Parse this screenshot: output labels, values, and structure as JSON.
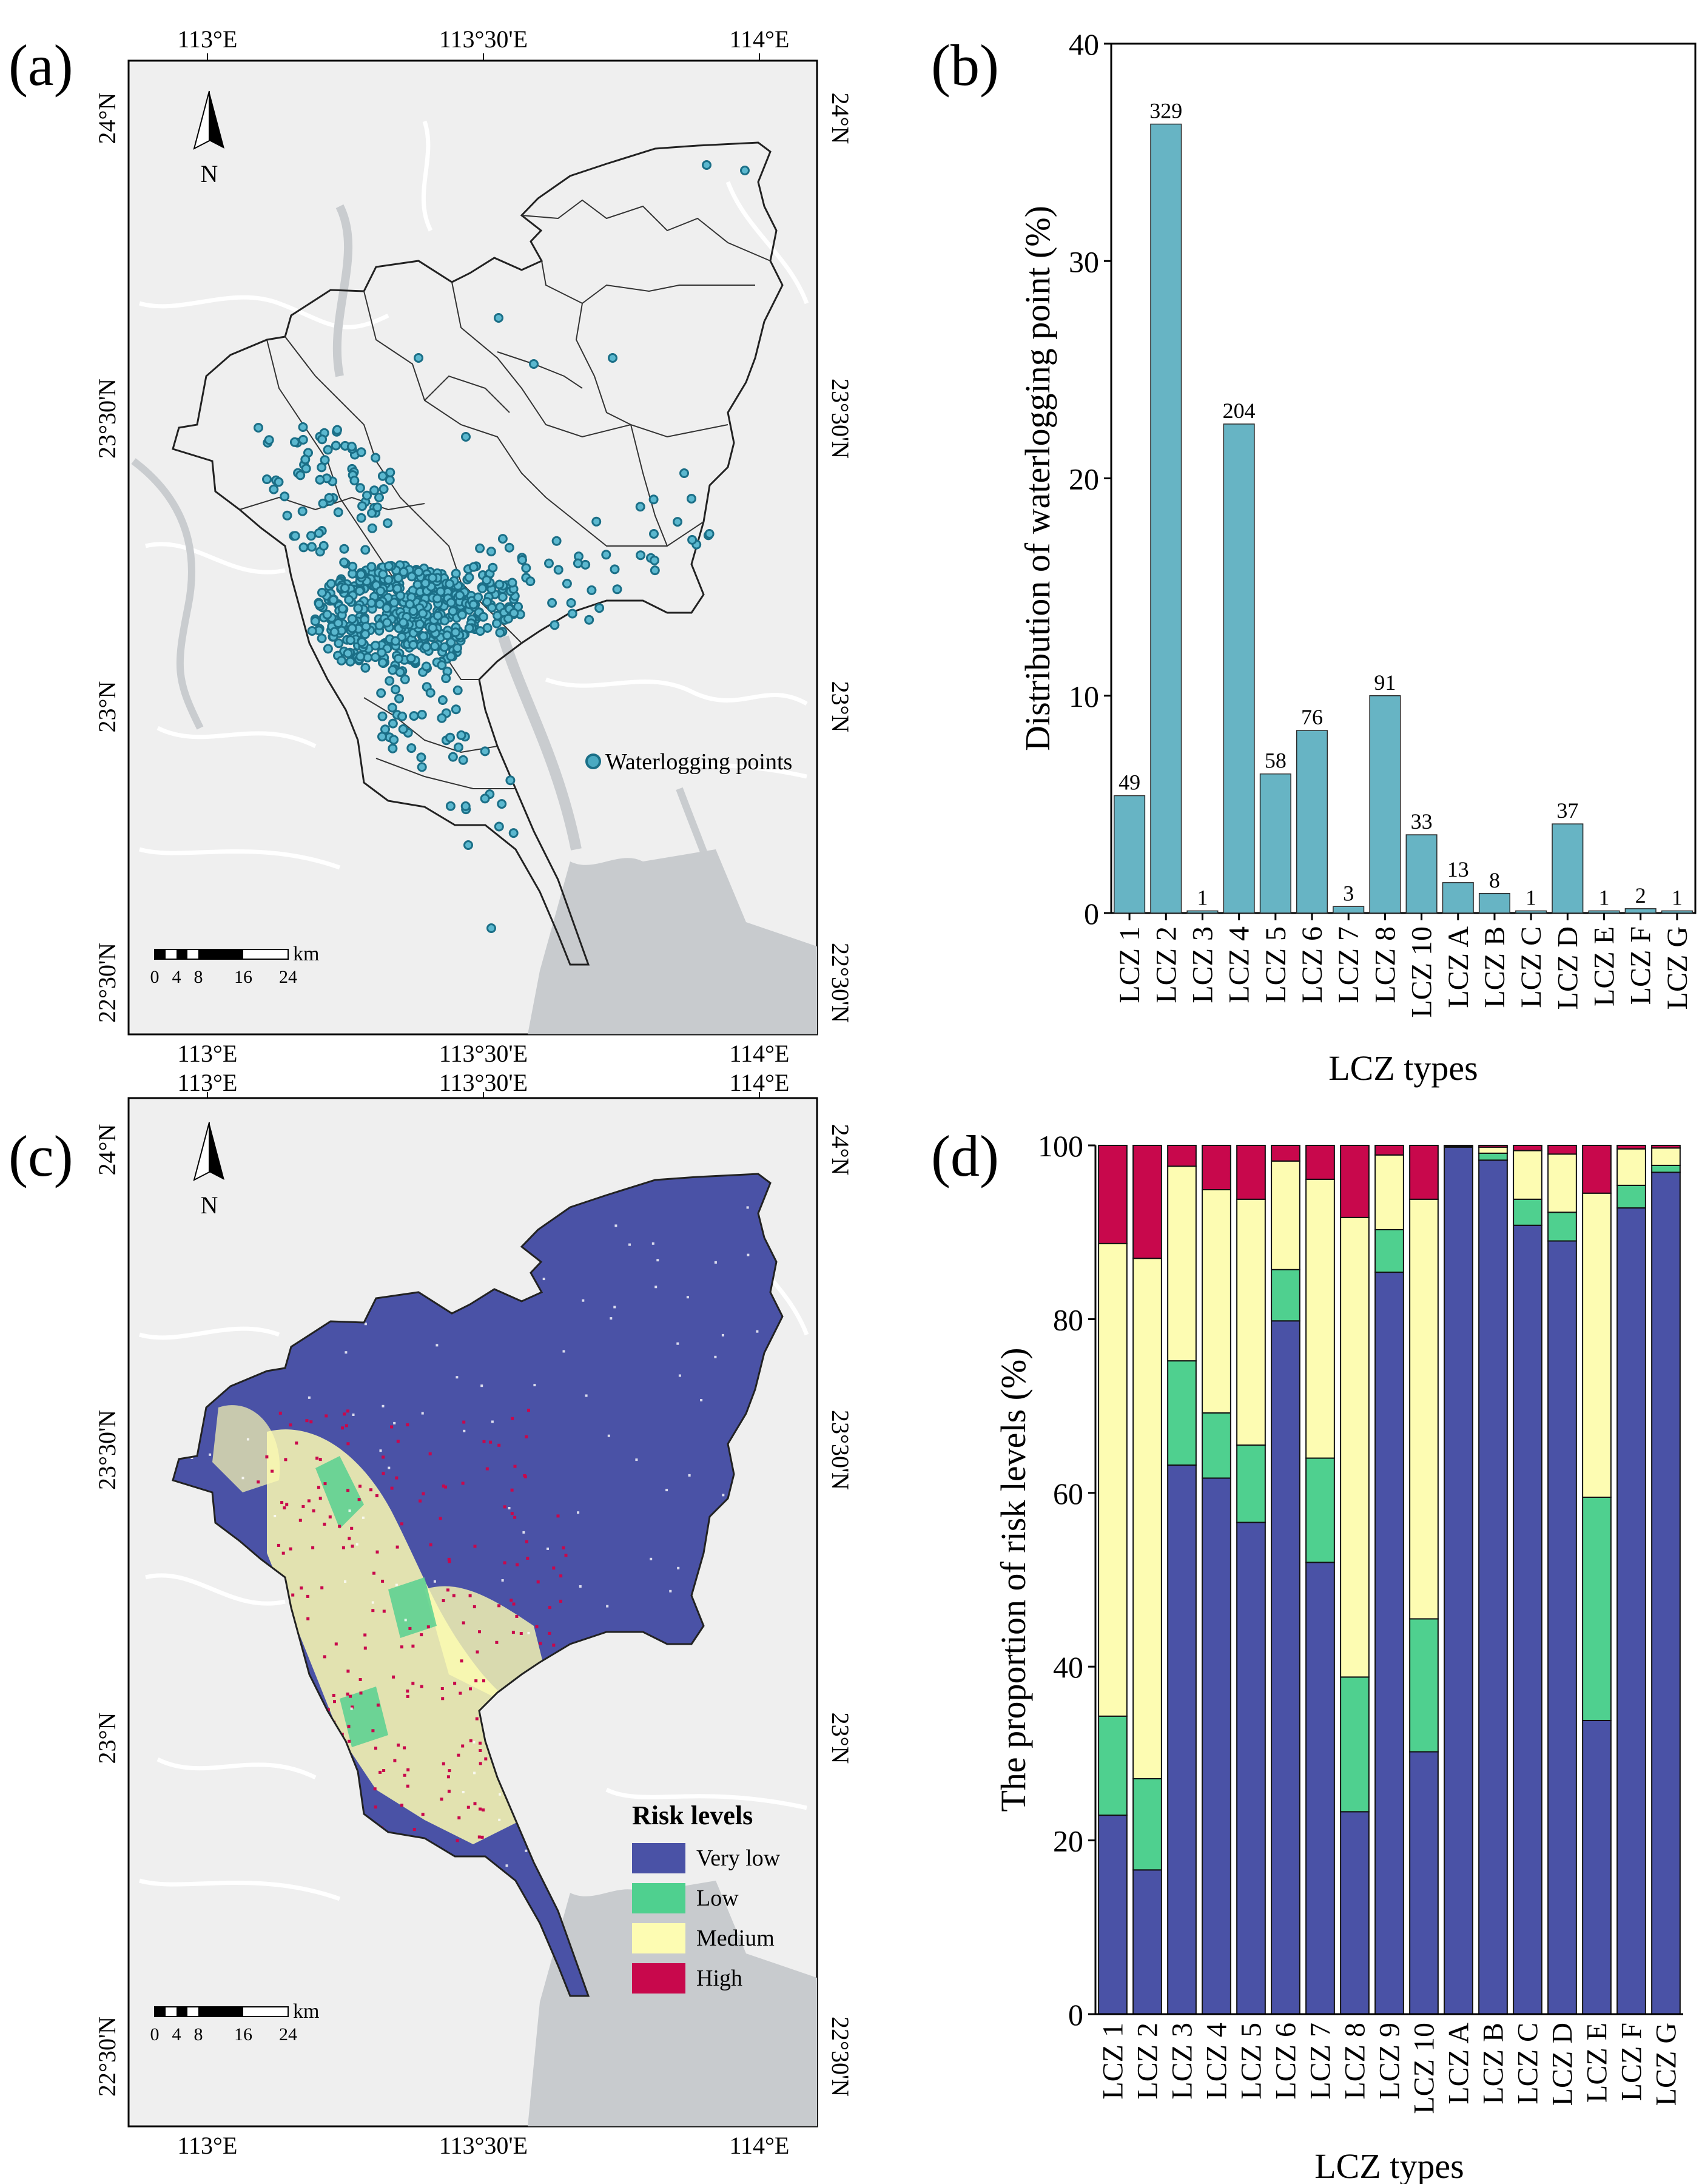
{
  "panels": {
    "a": {
      "label": "(a)",
      "lon_ticks": [
        "113°E",
        "113°30'E",
        "114°E"
      ],
      "lat_ticks": [
        "24°N",
        "23°30'N",
        "23°N",
        "22°30'N"
      ],
      "north": "N",
      "scale_unit": "km",
      "scale_ticks": [
        "0",
        "4",
        "8",
        "16",
        "24"
      ],
      "legend": {
        "label": "Waterlogging points",
        "color": "#4aa9c1"
      }
    },
    "b": {
      "label": "(b)"
    },
    "c": {
      "label": "(c)",
      "lon_ticks": [
        "113°E",
        "113°30'E",
        "114°E"
      ],
      "lat_ticks": [
        "24°N",
        "23°30'N",
        "23°N",
        "22°30'N"
      ],
      "north": "N",
      "scale_unit": "km",
      "scale_ticks": [
        "0",
        "4",
        "8",
        "16",
        "24"
      ],
      "legend": {
        "title": "Risk levels",
        "items": [
          {
            "label": "Very low",
            "color": "#4a52a6"
          },
          {
            "label": "Low",
            "color": "#4fd08f"
          },
          {
            "label": "Medium",
            "color": "#fdfcb2"
          },
          {
            "label": "High",
            "color": "#c8084c"
          }
        ]
      }
    },
    "d": {
      "label": "(d)"
    }
  },
  "chart_data": [
    {
      "panel": "b",
      "type": "bar",
      "categories": [
        "LCZ 1",
        "LCZ 2",
        "LCZ 3",
        "LCZ 4",
        "LCZ 5",
        "LCZ 6",
        "LCZ 7",
        "LCZ 8",
        "LCZ 10",
        "LCZ A",
        "LCZ B",
        "LCZ C",
        "LCZ D",
        "LCZ E",
        "LCZ F",
        "LCZ G"
      ],
      "values": [
        5.4,
        36.3,
        0.1,
        22.5,
        6.4,
        8.4,
        0.3,
        10.0,
        3.6,
        1.4,
        0.9,
        0.1,
        4.1,
        0.1,
        0.2,
        0.1
      ],
      "data_labels": [
        "49",
        "329",
        "1",
        "204",
        "58",
        "76",
        "3",
        "91",
        "33",
        "13",
        "8",
        "1",
        "37",
        "1",
        "2",
        "1"
      ],
      "yticks": [
        "0",
        "10",
        "20",
        "30",
        "40"
      ],
      "ylim": [
        0,
        40
      ],
      "xlabel": "LCZ types",
      "ylabel": "Distribution of waterlogging point (%)",
      "bar_color": "#67b4c4"
    },
    {
      "panel": "d",
      "type": "bar",
      "stacked": true,
      "categories": [
        "LCZ 1",
        "LCZ 2",
        "LCZ 3",
        "LCZ 4",
        "LCZ 5",
        "LCZ 6",
        "LCZ 7",
        "LCZ 8",
        "LCZ 9",
        "LCZ 10",
        "LCZ A",
        "LCZ B",
        "LCZ C",
        "LCZ D",
        "LCZ E",
        "LCZ F",
        "LCZ G"
      ],
      "series": [
        {
          "name": "Very low",
          "color": "#4a52a6",
          "values": [
            22.9,
            16.6,
            63.2,
            61.7,
            56.6,
            79.8,
            52.0,
            23.3,
            85.4,
            30.2,
            99.8,
            98.3,
            90.8,
            89.0,
            33.8,
            92.8,
            96.9
          ]
        },
        {
          "name": "Low",
          "color": "#4fd08f",
          "values": [
            11.4,
            10.5,
            12.0,
            7.5,
            8.9,
            5.9,
            12.0,
            15.5,
            4.9,
            15.3,
            0.1,
            0.8,
            3.0,
            3.3,
            25.7,
            2.6,
            0.8
          ]
        },
        {
          "name": "Medium",
          "color": "#fdfcb2",
          "values": [
            54.4,
            59.9,
            22.4,
            25.7,
            28.3,
            12.5,
            32.1,
            52.9,
            8.6,
            48.3,
            0.0,
            0.7,
            5.6,
            6.7,
            35.0,
            4.2,
            2.0
          ]
        },
        {
          "name": "High",
          "color": "#c8084c",
          "values": [
            11.3,
            13.0,
            2.4,
            5.1,
            6.2,
            1.8,
            3.9,
            8.3,
            1.1,
            6.2,
            0.1,
            0.2,
            0.6,
            1.0,
            5.5,
            0.4,
            0.3
          ]
        }
      ],
      "yticks": [
        "0",
        "20",
        "40",
        "60",
        "80",
        "100"
      ],
      "ylim": [
        0,
        100
      ],
      "xlabel": "LCZ types",
      "ylabel": "The proportion of risk levels (%)"
    }
  ]
}
